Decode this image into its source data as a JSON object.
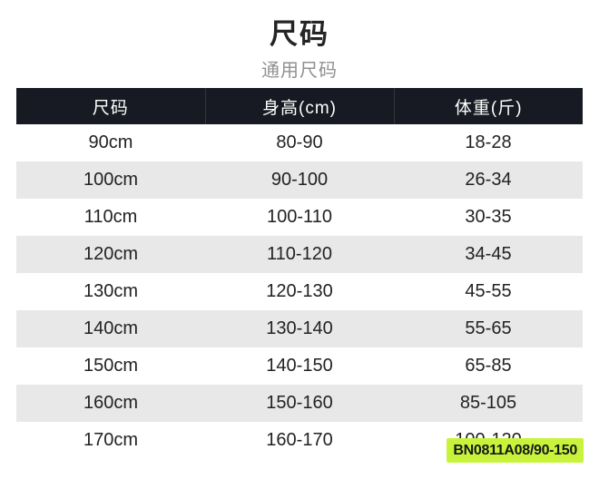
{
  "page": {
    "title": "尺码",
    "subtitle": "通用尺码"
  },
  "table": {
    "headers": [
      "尺码",
      "身高(cm)",
      "体重(斤)"
    ],
    "rows": [
      [
        "90cm",
        "80-90",
        "18-28"
      ],
      [
        "100cm",
        "90-100",
        "26-34"
      ],
      [
        "110cm",
        "100-110",
        "30-35"
      ],
      [
        "120cm",
        "110-120",
        "34-45"
      ],
      [
        "130cm",
        "120-130",
        "45-55"
      ],
      [
        "140cm",
        "130-140",
        "55-65"
      ],
      [
        "150cm",
        "140-150",
        "65-85"
      ],
      [
        "160cm",
        "150-160",
        "85-105"
      ],
      [
        "170cm",
        "160-170",
        "100-120"
      ]
    ]
  },
  "sku_label": {
    "text": "BN0811A08/90-150"
  },
  "colors": {
    "header_bg": "#171a22",
    "row_alt_bg": "#e8e8e8",
    "label_bg": "#c7f43b",
    "subtitle_text": "#909090",
    "body_text": "#222222"
  },
  "chart_data": {
    "type": "table",
    "title": "尺码",
    "subtitle": "通用尺码",
    "columns": [
      "尺码",
      "身高(cm)",
      "体重(斤)"
    ],
    "rows": [
      [
        "90cm",
        "80-90",
        "18-28"
      ],
      [
        "100cm",
        "90-100",
        "26-34"
      ],
      [
        "110cm",
        "100-110",
        "30-35"
      ],
      [
        "120cm",
        "110-120",
        "34-45"
      ],
      [
        "130cm",
        "120-130",
        "45-55"
      ],
      [
        "140cm",
        "130-140",
        "55-65"
      ],
      [
        "150cm",
        "140-150",
        "65-85"
      ],
      [
        "160cm",
        "150-160",
        "85-105"
      ],
      [
        "170cm",
        "160-170",
        "100-120"
      ]
    ]
  }
}
